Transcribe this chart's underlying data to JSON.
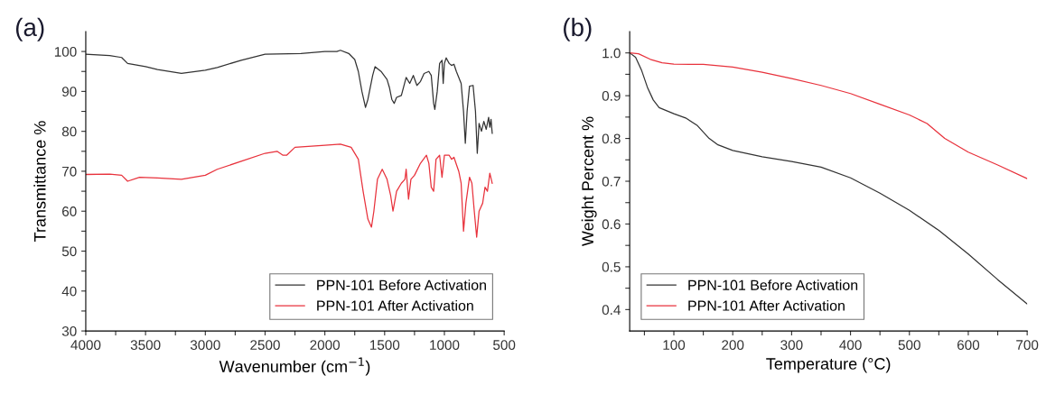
{
  "chart_data": [
    {
      "type": "line",
      "title": "(a)",
      "xlabel": "Wavenumber (cm$^{−1}$)",
      "ylabel": "Transmittance %",
      "xlim": [
        4000,
        500
      ],
      "ylim": [
        30,
        105
      ],
      "xticks": [
        4000,
        {
          "value": 3750,
          "label": null
        },
        3500,
        {
          "value": 3250,
          "label": null
        },
        3000,
        {
          "value": 2750,
          "label": null
        },
        2500,
        {
          "value": 2250,
          "label": null
        },
        2000,
        {
          "value": 1750,
          "label": null
        },
        1500,
        {
          "value": 1250,
          "label": null
        },
        1000,
        {
          "value": 750,
          "label": null
        },
        500
      ],
      "yticks": [
        30,
        {
          "value": 35,
          "label": null
        },
        40,
        {
          "value": 45,
          "label": null
        },
        50,
        {
          "value": 55,
          "label": null
        },
        60,
        {
          "value": 65,
          "label": null
        },
        70,
        {
          "value": 75,
          "label": null
        },
        80,
        {
          "value": 85,
          "label": null
        },
        90,
        {
          "value": 95,
          "label": null
        },
        100
      ],
      "grid": false,
      "legend": "bottom right",
      "marker": "none",
      "line_style": "solid",
      "series": [
        {
          "name": "PPN-101 Before Activation",
          "color": "#333333",
          "x": [
            4000,
            3800,
            3700,
            3650,
            3500,
            3400,
            3200,
            3000,
            2900,
            2700,
            2500,
            2200,
            2000,
            1900,
            1870,
            1800,
            1750,
            1720,
            1690,
            1660,
            1640,
            1600,
            1580,
            1530,
            1480,
            1460,
            1440,
            1420,
            1400,
            1360,
            1320,
            1290,
            1260,
            1230,
            1200,
            1170,
            1130,
            1110,
            1090,
            1080,
            1060,
            1040,
            1020,
            1010,
            1000,
            985,
            960,
            940,
            920,
            900,
            860,
            840,
            825,
            810,
            790,
            760,
            740,
            725,
            710,
            690,
            670,
            650,
            630,
            620,
            610,
            600
          ],
          "values": [
            99.3,
            99,
            98.5,
            97,
            96.2,
            95.5,
            94.5,
            95.3,
            96,
            97.8,
            99.3,
            99.5,
            100,
            100,
            100.3,
            99.5,
            98,
            95,
            90,
            86,
            88,
            94,
            96.2,
            95,
            93,
            91,
            88,
            87,
            88.5,
            89,
            93.5,
            92,
            94,
            91.5,
            92.5,
            94.5,
            95,
            94,
            87,
            85.5,
            90,
            97,
            97.8,
            92,
            97,
            98.4,
            97,
            96.5,
            96.8,
            95,
            92,
            85,
            77,
            85,
            91.3,
            91.5,
            85,
            74.5,
            82,
            80,
            82.5,
            80.5,
            83.5,
            81,
            83,
            79.5
          ]
        },
        {
          "name": "PPN-101 After Activation",
          "color": "#e8323c",
          "x": [
            4000,
            3800,
            3700,
            3650,
            3550,
            3400,
            3200,
            3000,
            2900,
            2700,
            2500,
            2400,
            2350,
            2320,
            2250,
            2000,
            1870,
            1780,
            1720,
            1680,
            1640,
            1610,
            1590,
            1560,
            1520,
            1480,
            1450,
            1430,
            1400,
            1360,
            1330,
            1320,
            1300,
            1280,
            1250,
            1200,
            1150,
            1130,
            1110,
            1090,
            1070,
            1040,
            1020,
            1000,
            960,
            940,
            920,
            880,
            860,
            840,
            820,
            790,
            770,
            750,
            730,
            710,
            680,
            660,
            640,
            620,
            600
          ],
          "values": [
            69.2,
            69.3,
            69,
            67.5,
            68.5,
            68.3,
            68,
            69,
            70.5,
            72.5,
            74.5,
            75,
            74,
            74,
            76,
            76.5,
            76.8,
            76,
            73,
            65,
            58,
            56,
            60,
            68,
            70.5,
            68,
            64,
            60,
            65,
            67,
            68,
            70.5,
            63,
            68,
            69,
            72,
            74,
            72,
            66,
            65,
            73,
            74,
            68.5,
            74,
            74,
            73,
            73.5,
            70,
            67,
            55,
            62,
            68.5,
            67,
            60,
            53.5,
            60,
            62,
            66,
            65,
            69.5,
            67
          ]
        }
      ]
    },
    {
      "type": "line",
      "title": "(b)",
      "xlabel": "Temperature (°C)",
      "ylabel": "Weight Percent %",
      "xlim": [
        25,
        700
      ],
      "ylim": [
        0.35,
        1.05
      ],
      "xticks": [
        {
          "value": 50,
          "label": null
        },
        100,
        {
          "value": 150,
          "label": null
        },
        200,
        {
          "value": 250,
          "label": null
        },
        300,
        {
          "value": 350,
          "label": null
        },
        400,
        {
          "value": 450,
          "label": null
        },
        500,
        {
          "value": 550,
          "label": null
        },
        600,
        {
          "value": 650,
          "label": null
        },
        700
      ],
      "yticks": [
        {
          "value": 0.4,
          "label": "0.4"
        },
        {
          "value": 0.45,
          "label": null
        },
        {
          "value": 0.5,
          "label": "0.5"
        },
        {
          "value": 0.55,
          "label": null
        },
        {
          "value": 0.6,
          "label": "0.6"
        },
        {
          "value": 0.65,
          "label": null
        },
        {
          "value": 0.7,
          "label": "0.7"
        },
        {
          "value": 0.75,
          "label": null
        },
        {
          "value": 0.8,
          "label": "0.8"
        },
        {
          "value": 0.85,
          "label": null
        },
        {
          "value": 0.9,
          "label": "0.9"
        },
        {
          "value": 0.95,
          "label": null
        },
        {
          "value": 1.0,
          "label": "1.0"
        }
      ],
      "grid": false,
      "legend": "bottom left",
      "marker": "none",
      "line_style": "solid",
      "series": [
        {
          "name": "PPN-101 Before Activation",
          "color": "#333333",
          "x": [
            25,
            35,
            45,
            55,
            65,
            75,
            100,
            120,
            140,
            160,
            175,
            200,
            250,
            300,
            350,
            400,
            450,
            500,
            550,
            600,
            650,
            700
          ],
          "values": [
            1.0,
            0.99,
            0.96,
            0.92,
            0.89,
            0.872,
            0.858,
            0.848,
            0.83,
            0.8,
            0.785,
            0.772,
            0.757,
            0.746,
            0.733,
            0.708,
            0.672,
            0.632,
            0.585,
            0.53,
            0.47,
            0.413
          ]
        },
        {
          "name": "PPN-101 After Activation",
          "color": "#e8323c",
          "x": [
            25,
            40,
            60,
            80,
            100,
            150,
            200,
            250,
            300,
            350,
            400,
            450,
            500,
            530,
            560,
            600,
            650,
            700
          ],
          "values": [
            1.0,
            0.998,
            0.985,
            0.977,
            0.974,
            0.973,
            0.967,
            0.955,
            0.94,
            0.924,
            0.905,
            0.88,
            0.855,
            0.835,
            0.8,
            0.768,
            0.738,
            0.706
          ]
        }
      ]
    }
  ]
}
